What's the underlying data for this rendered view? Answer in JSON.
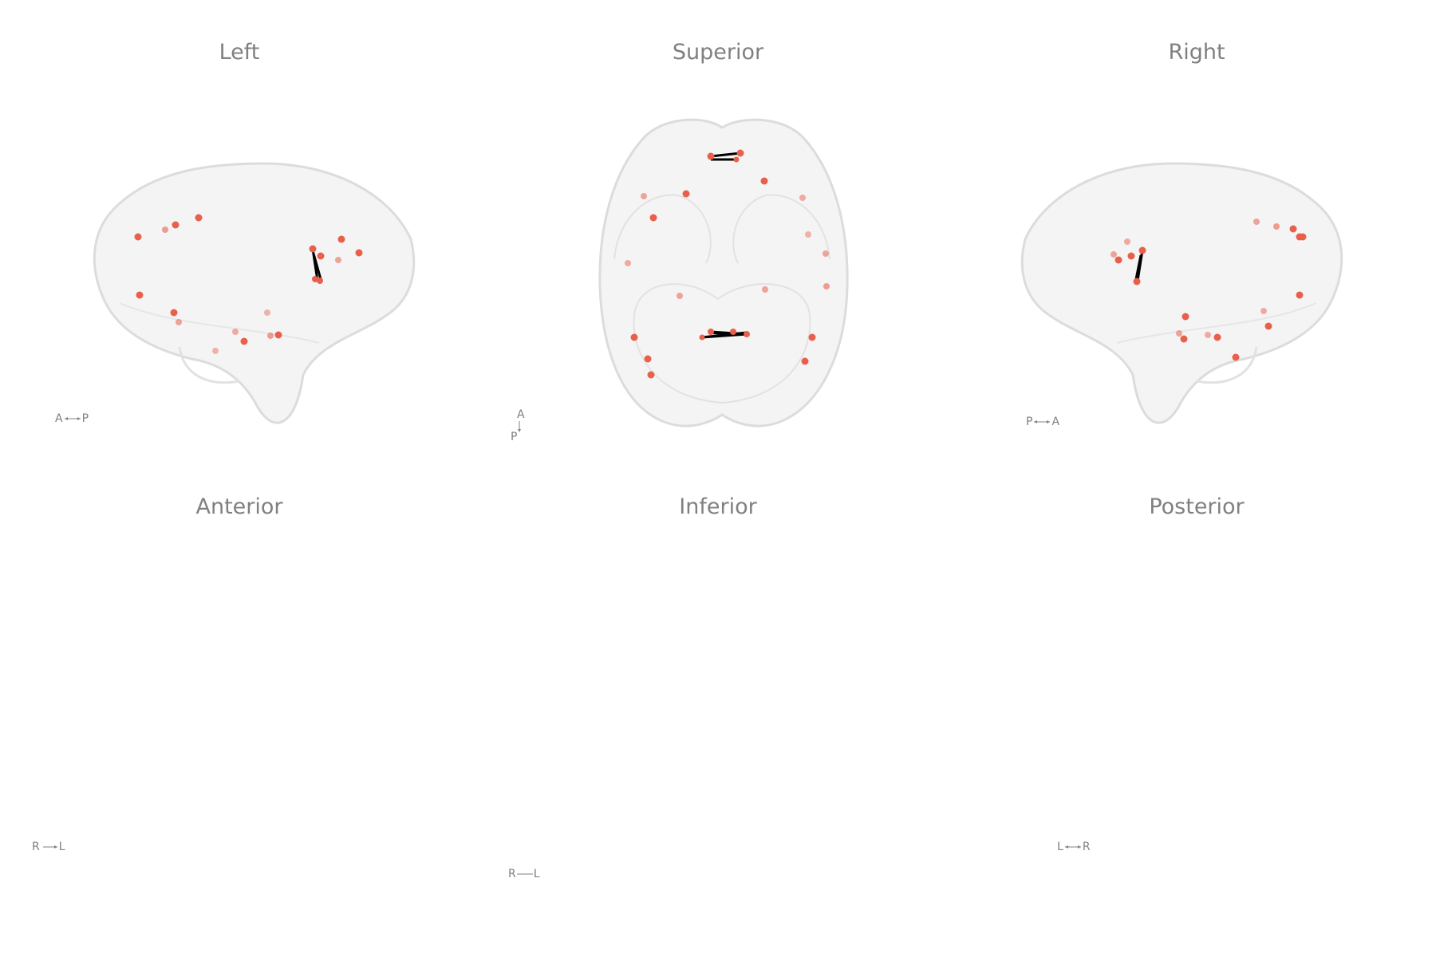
{
  "views": [
    {
      "title": "Left",
      "orientation": {
        "from": "A",
        "to": "P"
      }
    },
    {
      "title": "Superior",
      "orientation": {
        "from": "A",
        "to": "P"
      }
    },
    {
      "title": "Right",
      "orientation": {
        "from": "P",
        "to": "A"
      }
    },
    {
      "title": "Anterior",
      "orientation": {
        "from": "R",
        "to": "L"
      }
    },
    {
      "title": "Inferior",
      "orientation": {
        "from": "R",
        "to": "L"
      }
    },
    {
      "title": "Posterior",
      "orientation": {
        "from": "L",
        "to": "R"
      }
    }
  ],
  "colors": {
    "node": "#e8604c",
    "edge": "#000000",
    "brain_outline": "#dcdcdc",
    "brain_fill": "#f4f4f4",
    "title": "#808080"
  }
}
